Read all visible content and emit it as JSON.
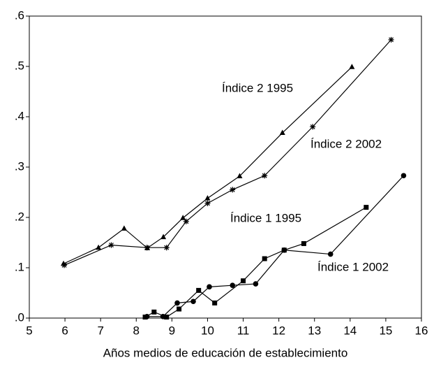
{
  "chart_data": {
    "type": "line",
    "xlabel": "Años medios de educación de establecimiento",
    "xlim": [
      5,
      16
    ],
    "xticks": [
      5,
      6,
      7,
      8,
      9,
      10,
      11,
      12,
      13,
      14,
      15,
      16
    ],
    "ylim": [
      0,
      0.6
    ],
    "yticks": [
      {
        "value": 0,
        "label": ".0"
      },
      {
        "value": 0.1,
        "label": ".1"
      },
      {
        "value": 0.2,
        "label": ".2"
      },
      {
        "value": 0.3,
        "label": ".3"
      },
      {
        "value": 0.4,
        "label": ".4"
      },
      {
        "value": 0.5,
        "label": ".5"
      },
      {
        "value": 0.6,
        "label": ".6"
      }
    ],
    "grid": false,
    "series": [
      {
        "name": "Índice 2 1995",
        "color": "#000000",
        "marker": "triangle",
        "x": [
          5.96,
          6.94,
          7.66,
          8.31,
          8.76,
          9.31,
          10.0,
          10.9,
          12.1,
          14.05
        ],
        "values": [
          0.108,
          0.14,
          0.178,
          0.139,
          0.161,
          0.199,
          0.238,
          0.282,
          0.368,
          0.499
        ]
      },
      {
        "name": "Índice 2 2002",
        "color": "#000000",
        "marker": "asterisk",
        "x": [
          5.98,
          7.3,
          8.3,
          8.85,
          9.4,
          10.0,
          10.7,
          11.6,
          12.95,
          15.15
        ],
        "values": [
          0.105,
          0.145,
          0.14,
          0.14,
          0.192,
          0.228,
          0.255,
          0.283,
          0.38,
          0.553
        ]
      },
      {
        "name": "Índice 1 1995",
        "color": "#000000",
        "marker": "square",
        "x": [
          8.25,
          8.5,
          8.85,
          9.2,
          9.75,
          10.2,
          11.0,
          11.6,
          12.15,
          12.7,
          14.45
        ],
        "values": [
          0.002,
          0.012,
          0.002,
          0.018,
          0.055,
          0.03,
          0.074,
          0.118,
          0.135,
          0.148,
          0.22
        ]
      },
      {
        "name": "Índice 1 2002",
        "color": "#000000",
        "marker": "circle",
        "x": [
          8.3,
          8.75,
          9.15,
          9.6,
          10.05,
          10.7,
          11.35,
          12.15,
          13.45,
          15.5
        ],
        "values": [
          0.003,
          0.003,
          0.03,
          0.033,
          0.062,
          0.065,
          0.068,
          0.135,
          0.127,
          0.283
        ]
      }
    ]
  }
}
